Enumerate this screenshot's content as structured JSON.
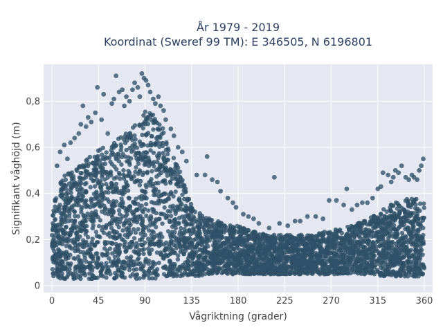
{
  "chart_data": {
    "type": "scatter",
    "title": "År 1979 - 2019",
    "subtitle": "Koordinat (Sweref 99 TM): E 346505, N 6196801",
    "xlabel": "Vågriktning (grader)",
    "ylabel": "Signifikant våghöjd (m)",
    "xlim": [
      -8,
      368
    ],
    "ylim": [
      -0.03,
      0.96
    ],
    "xticks": [
      0,
      45,
      90,
      135,
      180,
      225,
      270,
      315,
      360
    ],
    "xtick_labels": [
      "0",
      "45",
      "90",
      "135",
      "180",
      "225",
      "270",
      "315",
      "360"
    ],
    "yticks": [
      0,
      0.2,
      0.4,
      0.6,
      0.8
    ],
    "ytick_labels": [
      "0",
      "0,2",
      "0,4",
      "0,6",
      "0,8"
    ],
    "grid": true,
    "background": "#e5e8f1",
    "marker_color": "#2f5168",
    "envelope": {
      "x": [
        0,
        10,
        20,
        30,
        40,
        45,
        50,
        60,
        70,
        80,
        90,
        100,
        110,
        120,
        130,
        135,
        140,
        150,
        160,
        170,
        180,
        190,
        200,
        210,
        220,
        230,
        240,
        250,
        260,
        270,
        280,
        290,
        300,
        310,
        320,
        330,
        340,
        350,
        360
      ],
      "y_max": [
        0.36,
        0.47,
        0.5,
        0.55,
        0.58,
        0.6,
        0.6,
        0.62,
        0.66,
        0.7,
        0.76,
        0.74,
        0.66,
        0.54,
        0.42,
        0.36,
        0.32,
        0.3,
        0.28,
        0.27,
        0.26,
        0.24,
        0.23,
        0.22,
        0.22,
        0.22,
        0.22,
        0.22,
        0.23,
        0.24,
        0.25,
        0.26,
        0.28,
        0.3,
        0.33,
        0.36,
        0.38,
        0.38,
        0.36
      ],
      "y_min": [
        0.04,
        0.03,
        0.03,
        0.03,
        0.03,
        0.03,
        0.03,
        0.03,
        0.03,
        0.03,
        0.03,
        0.03,
        0.04,
        0.04,
        0.04,
        0.04,
        0.04,
        0.05,
        0.05,
        0.05,
        0.05,
        0.05,
        0.05,
        0.05,
        0.05,
        0.05,
        0.05,
        0.05,
        0.05,
        0.05,
        0.05,
        0.05,
        0.05,
        0.05,
        0.04,
        0.04,
        0.04,
        0.04,
        0.04
      ]
    },
    "outliers": [
      [
        5,
        0.52
      ],
      [
        8,
        0.58
      ],
      [
        12,
        0.61
      ],
      [
        15,
        0.55
      ],
      [
        18,
        0.62
      ],
      [
        22,
        0.64
      ],
      [
        26,
        0.66
      ],
      [
        28,
        0.7
      ],
      [
        30,
        0.78
      ],
      [
        33,
        0.69
      ],
      [
        35,
        0.73
      ],
      [
        38,
        0.71
      ],
      [
        42,
        0.75
      ],
      [
        44,
        0.86
      ],
      [
        48,
        0.72
      ],
      [
        50,
        0.83
      ],
      [
        54,
        0.66
      ],
      [
        58,
        0.79
      ],
      [
        60,
        0.81
      ],
      [
        62,
        0.91
      ],
      [
        65,
        0.84
      ],
      [
        68,
        0.85
      ],
      [
        70,
        0.78
      ],
      [
        72,
        0.82
      ],
      [
        75,
        0.8
      ],
      [
        78,
        0.85
      ],
      [
        80,
        0.88
      ],
      [
        83,
        0.86
      ],
      [
        85,
        0.82
      ],
      [
        87,
        0.92
      ],
      [
        89,
        0.9
      ],
      [
        91,
        0.89
      ],
      [
        93,
        0.87
      ],
      [
        95,
        0.84
      ],
      [
        98,
        0.81
      ],
      [
        100,
        0.79
      ],
      [
        103,
        0.82
      ],
      [
        105,
        0.78
      ],
      [
        108,
        0.76
      ],
      [
        110,
        0.72
      ],
      [
        115,
        0.68
      ],
      [
        118,
        0.65
      ],
      [
        122,
        0.6
      ],
      [
        126,
        0.58
      ],
      [
        130,
        0.54
      ],
      [
        140,
        0.48
      ],
      [
        148,
        0.48
      ],
      [
        150,
        0.56
      ],
      [
        155,
        0.46
      ],
      [
        160,
        0.45
      ],
      [
        163,
        0.41
      ],
      [
        170,
        0.38
      ],
      [
        175,
        0.36
      ],
      [
        178,
        0.34
      ],
      [
        185,
        0.31
      ],
      [
        190,
        0.3
      ],
      [
        195,
        0.29
      ],
      [
        200,
        0.27
      ],
      [
        210,
        0.25
      ],
      [
        215,
        0.47
      ],
      [
        220,
        0.27
      ],
      [
        228,
        0.26
      ],
      [
        235,
        0.28
      ],
      [
        240,
        0.28
      ],
      [
        247,
        0.3
      ],
      [
        255,
        0.3
      ],
      [
        262,
        0.29
      ],
      [
        268,
        0.37
      ],
      [
        275,
        0.37
      ],
      [
        282,
        0.35
      ],
      [
        285,
        0.42
      ],
      [
        290,
        0.33
      ],
      [
        295,
        0.35
      ],
      [
        300,
        0.36
      ],
      [
        305,
        0.36
      ],
      [
        310,
        0.38
      ],
      [
        315,
        0.42
      ],
      [
        318,
        0.43
      ],
      [
        320,
        0.49
      ],
      [
        325,
        0.48
      ],
      [
        328,
        0.45
      ],
      [
        330,
        0.47
      ],
      [
        332,
        0.5
      ],
      [
        335,
        0.49
      ],
      [
        338,
        0.52
      ],
      [
        342,
        0.47
      ],
      [
        345,
        0.46
      ],
      [
        348,
        0.48
      ],
      [
        350,
        0.47
      ],
      [
        353,
        0.46
      ],
      [
        355,
        0.5
      ],
      [
        357,
        0.52
      ],
      [
        359,
        0.55
      ]
    ]
  }
}
